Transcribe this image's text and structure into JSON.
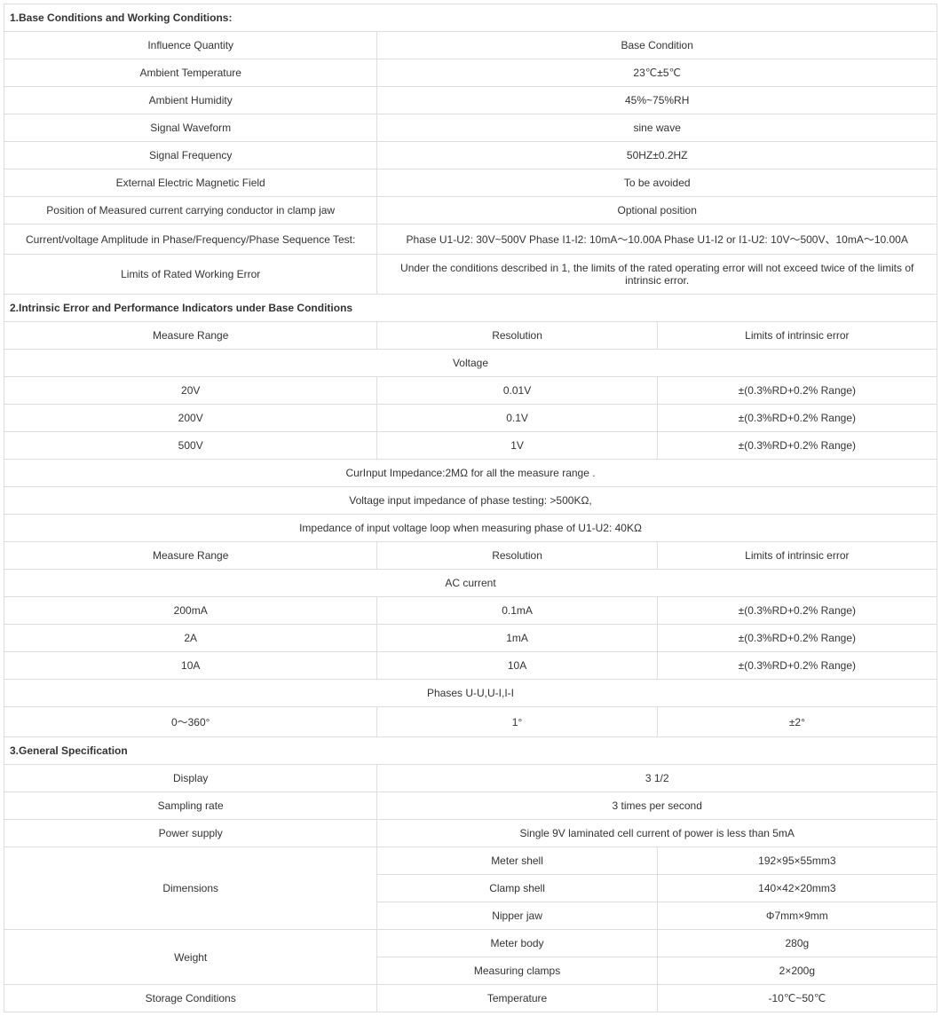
{
  "section1": {
    "title": "1.Base Conditions and Working Conditions:",
    "rows": [
      {
        "left": "Influence Quantity",
        "right": "Base Condition"
      },
      {
        "left": "Ambient Temperature",
        "right": "23℃±5℃"
      },
      {
        "left": "Ambient Humidity",
        "right": "45%~75%RH"
      },
      {
        "left": "Signal Waveform",
        "right": "sine wave"
      },
      {
        "left": "Signal Frequency",
        "right": "50HZ±0.2HZ"
      },
      {
        "left": "External Electric Magnetic Field",
        "right": "To be avoided"
      },
      {
        "left": "Position of Measured current carrying conductor in clamp jaw",
        "right": "Optional position"
      },
      {
        "left": "Current/voltage Amplitude in Phase/Frequency/Phase Sequence Test:",
        "right": "Phase U1-U2: 30V~500V  Phase I1-I2: 10mA～10.00A   Phase U1-I2 or I1-U2: 10V～500V、10mA～10.00A"
      },
      {
        "left": "Limits of Rated Working Error",
        "right": "Under the conditions described in 1, the limits of the rated operating error will not exceed twice of the limits of intrinsic error."
      }
    ]
  },
  "section2": {
    "title": "2.Intrinsic Error and Performance Indicators under Base Conditions",
    "header1": {
      "c1": "Measure Range",
      "c2": "Resolution",
      "c3": "Limits of intrinsic error"
    },
    "voltageLabel": "Voltage",
    "voltageRows": [
      {
        "c1": "20V",
        "c2": "0.01V",
        "c3": "±(0.3%RD+0.2% Range)"
      },
      {
        "c1": "200V",
        "c2": "0.1V",
        "c3": "±(0.3%RD+0.2% Range)"
      },
      {
        "c1": "500V",
        "c2": "1V",
        "c3": "±(0.3%RD+0.2% Range)"
      }
    ],
    "notes": [
      "CurInput Impedance:2MΩ for all the measure range .",
      "Voltage input impedance of phase testing: >500KΩ,",
      "Impedance of input voltage loop when measuring phase of U1-U2: 40KΩ"
    ],
    "header2": {
      "c1": "Measure Range",
      "c2": "Resolution",
      "c3": "Limits of intrinsic error"
    },
    "acLabel": "AC current",
    "acRows": [
      {
        "c1": "200mA",
        "c2": "0.1mA",
        "c3": "±(0.3%RD+0.2% Range)"
      },
      {
        "c1": "2A",
        "c2": "1mA",
        "c3": "±(0.3%RD+0.2% Range)"
      },
      {
        "c1": "10A",
        "c2": "10A",
        "c3": "±(0.3%RD+0.2% Range)"
      }
    ],
    "phasesLabel": "Phases U-U,U-I,I-I",
    "phasesRow": {
      "c1": "0～360°",
      "c2": "1°",
      "c3": "±2°"
    }
  },
  "section3": {
    "title": "3.General Specification",
    "rows2col": [
      {
        "left": "Display",
        "right": "3 1/2"
      },
      {
        "left": "Sampling rate",
        "right": "3 times per second"
      },
      {
        "left": "Power supply",
        "right": "Single 9V laminated cell current of power is less than 5mA"
      }
    ],
    "dimensionsLabel": "Dimensions",
    "dimensionsRows": [
      {
        "c2": "Meter shell",
        "c3": "192×95×55mm3"
      },
      {
        "c2": "Clamp shell",
        "c3": "140×42×20mm3"
      },
      {
        "c2": "Nipper jaw",
        "c3": "Φ7mm×9mm"
      }
    ],
    "weightLabel": "Weight",
    "weightRows": [
      {
        "c2": "Meter body",
        "c3": "280g"
      },
      {
        "c2": "Measuring clamps",
        "c3": "2×200g"
      }
    ],
    "storageLabel": "Storage Conditions",
    "storageRow": {
      "c2": "Temperature",
      "c3": "-10℃~50℃"
    }
  }
}
